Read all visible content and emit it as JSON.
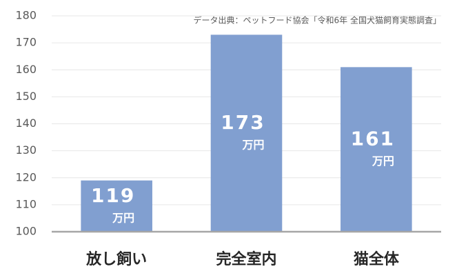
{
  "chart_data": {
    "type": "bar",
    "annotation": "データ出典：ペットフード協会「令和6年 全国犬猫飼育実態調査」",
    "categories": [
      "放し飼い",
      "完全室内",
      "猫全体"
    ],
    "values": [
      119,
      173,
      161
    ],
    "value_unit": "万円",
    "color": "#819fd0",
    "ylim": [
      100,
      180
    ],
    "yticks": [
      100,
      110,
      120,
      130,
      140,
      150,
      160,
      170,
      180
    ],
    "grid": true
  }
}
